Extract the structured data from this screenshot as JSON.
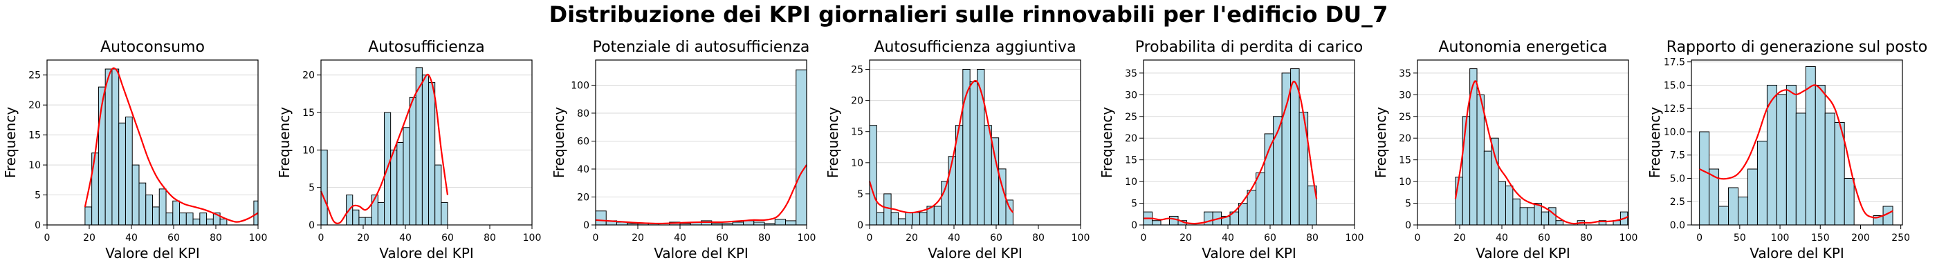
{
  "suptitle": "Distribuzione dei KPI giornalieri sulle rinnovabili per l'edificio DU_7",
  "colors": {
    "bar_fill": "#add8e6",
    "bar_edge": "#000000",
    "kde_line": "#ff0000",
    "grid": "#d9d9d9"
  },
  "chart_data": [
    {
      "type": "bar",
      "title": "Autoconsumo",
      "xlabel": "Valore del KPI",
      "ylabel": "Frequency",
      "xlim": [
        0,
        100
      ],
      "ylim": [
        0,
        27.5
      ],
      "xticks": [
        0,
        20,
        40,
        60,
        80,
        100
      ],
      "yticks": [
        0,
        5,
        10,
        15,
        20,
        25
      ],
      "grid": "y",
      "bin_edges": [
        18,
        21.2,
        24.4,
        27.6,
        30.8,
        34,
        37.2,
        40.4,
        43.6,
        46.8,
        50,
        53.2,
        56.4,
        59.6,
        62.8,
        66,
        69.2,
        72.4,
        75.6,
        78.8,
        82,
        85.2,
        88.4,
        91.6,
        94.8,
        98,
        100
      ],
      "values": [
        3,
        12,
        23,
        26,
        26,
        17,
        18,
        10,
        7,
        5,
        3,
        6,
        2,
        4,
        2,
        2,
        1,
        2,
        1,
        2,
        1,
        0,
        0,
        0,
        0,
        4
      ],
      "kde": {
        "x": [
          18,
          22,
          26,
          30,
          33,
          36,
          40,
          44,
          48,
          52,
          56,
          60,
          65,
          70,
          75,
          80,
          85,
          90,
          95,
          100
        ],
        "y": [
          3,
          10,
          20,
          25.5,
          25.8,
          23,
          19,
          15,
          11,
          8,
          6,
          4.5,
          3.5,
          3,
          2.5,
          1.8,
          1,
          0.5,
          1,
          2
        ]
      }
    },
    {
      "type": "bar",
      "title": "Autosufficienza",
      "xlabel": "Valore del KPI",
      "ylabel": "Frequency",
      "xlim": [
        0,
        100
      ],
      "ylim": [
        0,
        22
      ],
      "xticks": [
        0,
        20,
        40,
        60,
        80,
        100
      ],
      "yticks": [
        0,
        5,
        10,
        15,
        20
      ],
      "grid": "y",
      "bin_edges": [
        0,
        3,
        6,
        9,
        12,
        15,
        18,
        21,
        24,
        27,
        30,
        33,
        36,
        39,
        42,
        45,
        48,
        51,
        54,
        57,
        60
      ],
      "values": [
        10,
        0,
        0,
        0,
        4,
        2,
        1,
        1,
        4,
        3,
        15,
        10,
        11,
        13,
        17,
        21,
        20,
        19,
        8,
        3
      ],
      "kde": {
        "x": [
          0,
          3,
          6,
          9,
          12,
          15,
          18,
          21,
          24,
          28,
          32,
          36,
          40,
          44,
          48,
          51,
          54,
          57,
          60
        ],
        "y": [
          4.5,
          2.5,
          0.5,
          0.3,
          1.5,
          2.5,
          2.5,
          2,
          2.8,
          5,
          8,
          11,
          14,
          17,
          19,
          20,
          17,
          10,
          4
        ]
      }
    },
    {
      "type": "bar",
      "title": "Potenziale di autosufficienza",
      "xlabel": "Valore del KPI",
      "ylabel": "Frequency",
      "xlim": [
        0,
        100
      ],
      "ylim": [
        0,
        118
      ],
      "xticks": [
        0,
        20,
        40,
        60,
        80,
        100
      ],
      "yticks": [
        0,
        20,
        40,
        60,
        80,
        100
      ],
      "grid": "y",
      "bin_edges": [
        0,
        5,
        10,
        15,
        20,
        25,
        30,
        35,
        40,
        45,
        50,
        55,
        60,
        65,
        70,
        75,
        80,
        85,
        90,
        95,
        100
      ],
      "values": [
        10,
        3,
        2,
        1,
        1,
        1,
        0,
        2,
        1,
        2,
        3,
        1,
        1,
        2,
        3,
        2,
        1,
        4,
        3,
        111
      ],
      "kde": {
        "x": [
          0,
          5,
          10,
          15,
          20,
          25,
          30,
          35,
          40,
          45,
          50,
          55,
          60,
          65,
          70,
          75,
          80,
          85,
          88,
          91,
          94,
          97,
          100
        ],
        "y": [
          3.5,
          3,
          2.5,
          2,
          1.5,
          1.2,
          1,
          1.2,
          1.5,
          1.8,
          2,
          2,
          2,
          2.5,
          3,
          3.5,
          3.5,
          5,
          9,
          16,
          26,
          36,
          43
        ]
      }
    },
    {
      "type": "bar",
      "title": "Autosufficienza aggiuntiva",
      "xlabel": "Valore del KPI",
      "ylabel": "Frequency",
      "xlim": [
        0,
        100
      ],
      "ylim": [
        0,
        26.5
      ],
      "xticks": [
        0,
        20,
        40,
        60,
        80,
        100
      ],
      "yticks": [
        0,
        5,
        10,
        15,
        20,
        25
      ],
      "grid": "y",
      "bin_edges": [
        0,
        3.4,
        6.8,
        10.2,
        13.6,
        17,
        20.4,
        23.8,
        27.2,
        30.6,
        34,
        37.4,
        40.8,
        44.2,
        47.6,
        51,
        54.4,
        57.8,
        61.2,
        64.6,
        68
      ],
      "values": [
        16,
        2,
        5,
        2,
        1,
        2,
        2,
        2,
        3,
        3,
        7,
        11,
        16,
        25,
        23,
        25,
        16,
        14,
        9,
        4
      ],
      "kde": {
        "x": [
          0,
          3,
          6,
          9,
          12,
          15,
          18,
          21,
          24,
          27,
          30,
          33,
          36,
          39,
          42,
          45,
          48,
          51,
          54,
          57,
          60,
          63,
          66,
          68
        ],
        "y": [
          7,
          4,
          3,
          2.7,
          2.5,
          2.2,
          2,
          2,
          2.2,
          2.5,
          3,
          4,
          6,
          10,
          15,
          20,
          22.5,
          23,
          20,
          15,
          10,
          6,
          3,
          2
        ]
      }
    },
    {
      "type": "bar",
      "title": "Probabilita di perdita di carico",
      "xlabel": "Valore del KPI",
      "ylabel": "Frequency",
      "xlim": [
        0,
        100
      ],
      "ylim": [
        0,
        38
      ],
      "xticks": [
        0,
        20,
        40,
        60,
        80,
        100
      ],
      "yticks": [
        0,
        5,
        10,
        15,
        20,
        25,
        30,
        35
      ],
      "grid": "y",
      "bin_edges": [
        0,
        4.1,
        8.2,
        12.3,
        16.4,
        20.5,
        24.6,
        28.7,
        32.8,
        36.9,
        41,
        45.1,
        49.2,
        53.3,
        57.4,
        61.5,
        65.6,
        69.7,
        73.8,
        77.9,
        82
      ],
      "values": [
        3,
        1,
        0,
        2,
        1,
        0,
        0,
        3,
        3,
        2,
        3,
        5,
        8,
        12,
        21,
        25,
        35,
        36,
        26,
        9
      ],
      "kde": {
        "x": [
          0,
          4,
          8,
          12,
          16,
          20,
          24,
          28,
          32,
          36,
          40,
          44,
          48,
          52,
          56,
          60,
          64,
          68,
          71,
          74,
          77,
          80,
          82
        ],
        "y": [
          1.5,
          1.5,
          1.2,
          1.5,
          1.2,
          0.5,
          0.3,
          0.5,
          1,
          1.5,
          2,
          3.5,
          6,
          9,
          13,
          18,
          22,
          28,
          33,
          30,
          22,
          12,
          6
        ]
      }
    },
    {
      "type": "bar",
      "title": "Autonomia energetica",
      "xlabel": "Valore del KPI",
      "ylabel": "Frequency",
      "xlim": [
        0,
        100
      ],
      "ylim": [
        0,
        38
      ],
      "xticks": [
        0,
        20,
        40,
        60,
        80,
        100
      ],
      "yticks": [
        0,
        5,
        10,
        15,
        20,
        25,
        30,
        35
      ],
      "grid": "y",
      "bin_edges": [
        18,
        21.4,
        24.8,
        28.2,
        31.6,
        35,
        38.4,
        41.8,
        45.2,
        48.6,
        52,
        55.4,
        58.8,
        62.2,
        65.6,
        69,
        72.4,
        75.8,
        79.2,
        82.6,
        86,
        89.4,
        92.8,
        96.2,
        99.6
      ],
      "values": [
        11,
        25,
        36,
        30,
        17,
        20,
        10,
        9,
        6,
        4,
        4,
        5,
        3,
        4,
        1,
        0,
        0,
        1,
        0,
        0,
        1,
        0,
        1,
        3
      ],
      "kde": {
        "x": [
          18,
          21,
          24,
          27,
          29,
          32,
          35,
          38,
          42,
          46,
          50,
          54,
          58,
          62,
          66,
          70,
          74,
          78,
          82,
          86,
          90,
          94,
          98,
          100
        ],
        "y": [
          6,
          15,
          27,
          33,
          31,
          25,
          19,
          14,
          11,
          8,
          6,
          5,
          4.5,
          3.5,
          2,
          0.8,
          0.3,
          0.5,
          0.5,
          0.8,
          0.8,
          1,
          1.5,
          2
        ]
      }
    },
    {
      "type": "bar",
      "title": "Rapporto di generazione sul posto",
      "xlabel": "Valore del KPI",
      "ylabel": "Frequency",
      "xlim": [
        -10,
        252
      ],
      "ylim": [
        0,
        17.7
      ],
      "xticks": [
        0,
        50,
        100,
        150,
        200,
        250
      ],
      "yticks": [
        0,
        2.5,
        5.0,
        7.5,
        10.0,
        12.5,
        15.0,
        17.5
      ],
      "ytick_labels": [
        "0.0",
        "2.5",
        "5.0",
        "7.5",
        "10.0",
        "12.5",
        "15.0",
        "17.5"
      ],
      "grid": "y",
      "bin_edges": [
        0,
        12,
        24,
        36,
        48,
        60,
        72,
        84,
        96,
        108,
        120,
        132,
        144,
        156,
        168,
        180,
        192,
        204,
        216,
        228,
        240
      ],
      "values": [
        10,
        6,
        2,
        4,
        3,
        6,
        9,
        15,
        14,
        15,
        12,
        17,
        15,
        12,
        11,
        5,
        0,
        0,
        1,
        2
      ],
      "kde": {
        "x": [
          0,
          12,
          24,
          36,
          48,
          60,
          72,
          84,
          96,
          108,
          120,
          132,
          144,
          156,
          168,
          180,
          192,
          204,
          216,
          228,
          240
        ],
        "y": [
          6,
          5.5,
          5,
          5,
          5.5,
          7,
          9.5,
          12.5,
          14,
          14.5,
          14,
          14.5,
          15,
          14,
          12.5,
          9,
          4.5,
          1.5,
          0.8,
          1,
          1.5
        ]
      }
    }
  ]
}
